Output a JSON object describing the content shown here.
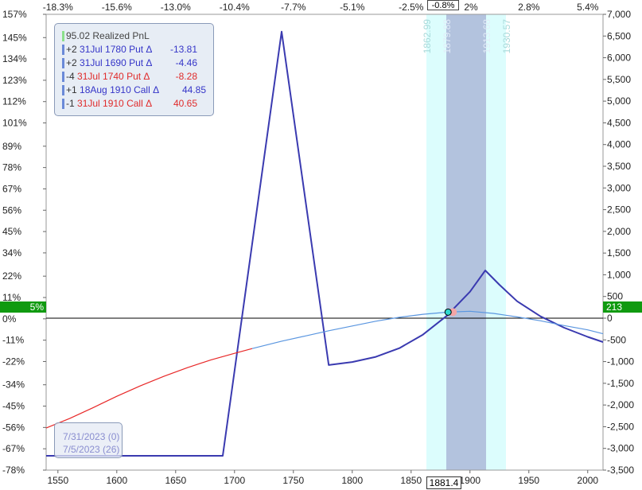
{
  "chart_data": {
    "type": "line",
    "x_axis": {
      "range": [
        1540,
        2013
      ],
      "ticks": [
        1550,
        1600,
        1650,
        1700,
        1750,
        1800,
        1850,
        1900,
        1950,
        2000
      ],
      "tick_labels": [
        "1550",
        "1600",
        "1650",
        "1700",
        "1750",
        "1800",
        "1850",
        "1900",
        "1950",
        "2000"
      ]
    },
    "top_axis": {
      "ticks": [
        1550,
        1600,
        1650,
        1700,
        1750,
        1800,
        1850,
        1900,
        1950,
        2000
      ],
      "tick_labels": [
        "-18.3%",
        "-15.6%",
        "-13.0%",
        "-10.4%",
        "-7.7%",
        "-5.1%",
        "-2.5%",
        "",
        "2.8%",
        "5.4%"
      ],
      "partial_label": "2%"
    },
    "y_left": {
      "range": [
        -78,
        157
      ],
      "ticks": [
        157,
        145,
        134,
        123,
        112,
        101,
        89,
        78,
        67,
        56,
        45,
        34,
        22,
        11,
        0,
        -11,
        -22,
        -34,
        -45,
        -56,
        -67,
        -78
      ],
      "tick_labels": [
        "157%",
        "145%",
        "134%",
        "123%",
        "112%",
        "101%",
        "89%",
        "78%",
        "67%",
        "56%",
        "45%",
        "34%",
        "22%",
        "11%",
        "0%",
        "-11%",
        "-22%",
        "-34%",
        "-45%",
        "-56%",
        "-67%",
        "-78%"
      ]
    },
    "y_right": {
      "range": [
        -3500,
        7000
      ],
      "ticks": [
        7000,
        6500,
        6000,
        5500,
        5000,
        4500,
        4000,
        3500,
        3000,
        2500,
        2000,
        1500,
        1000,
        500,
        0,
        -500,
        -1000,
        -1500,
        -2000,
        -2500,
        -3000,
        -3500
      ],
      "tick_labels": [
        "7,000",
        "6,500",
        "6,000",
        "5,500",
        "5,000",
        "4,500",
        "4,000",
        "3,500",
        "3,000",
        "2,500",
        "2,000",
        "1,500",
        "1,000",
        "500",
        "0",
        "-500",
        "-1,000",
        "-1,500",
        "-2,000",
        "-2,500",
        "-3,000",
        "-3,500"
      ]
    },
    "series": [
      {
        "color": "#3a3ab0",
        "points": [
          [
            1540,
            -3170
          ],
          [
            1690,
            -3170
          ],
          [
            1740,
            6600
          ],
          [
            1780,
            -1080
          ],
          [
            1800,
            -1010
          ],
          [
            1820,
            -890
          ],
          [
            1840,
            -690
          ],
          [
            1860,
            -380
          ],
          [
            1880,
            50
          ],
          [
            1900,
            610
          ],
          [
            1913,
            1100
          ],
          [
            1925,
            770
          ],
          [
            1940,
            390
          ],
          [
            1960,
            40
          ],
          [
            1980,
            -220
          ],
          [
            2000,
            -430
          ],
          [
            2013,
            -550
          ]
        ]
      },
      {
        "color": "#e82828",
        "points": [
          [
            1540,
            -2530
          ],
          [
            1560,
            -2310
          ],
          [
            1580,
            -2060
          ],
          [
            1600,
            -1800
          ],
          [
            1620,
            -1560
          ],
          [
            1640,
            -1340
          ],
          [
            1660,
            -1140
          ],
          [
            1680,
            -960
          ],
          [
            1700,
            -810
          ],
          [
            1715,
            -700
          ]
        ]
      },
      {
        "color": "#5a96e0",
        "points": [
          [
            1715,
            -700
          ],
          [
            1740,
            -530
          ],
          [
            1760,
            -410
          ],
          [
            1780,
            -290
          ],
          [
            1800,
            -180
          ],
          [
            1820,
            -70
          ],
          [
            1840,
            20
          ],
          [
            1860,
            90
          ],
          [
            1881,
            140
          ],
          [
            1900,
            160
          ],
          [
            1920,
            110
          ],
          [
            1940,
            30
          ],
          [
            1960,
            -60
          ],
          [
            1980,
            -170
          ],
          [
            2000,
            -270
          ],
          [
            2013,
            -360
          ]
        ]
      }
    ],
    "current_point": [
      1881.4,
      140
    ],
    "bands": [
      {
        "from": 1862.99,
        "to": 1930.57,
        "color": "#dcfdfd"
      },
      {
        "from": 1879.88,
        "to": 1913.68,
        "color": "#b3c3de"
      }
    ],
    "band_labels": [
      {
        "text": "1862.99",
        "x": 1862.99,
        "color": "#a8dada"
      },
      {
        "text": "1879.88",
        "x": 1879.88,
        "color": "#e2ecf8"
      },
      {
        "text": "1913.68",
        "x": 1913.68,
        "color": "#e2ecf8"
      },
      {
        "text": "1930.57",
        "x": 1930.57,
        "color": "#a8dada"
      }
    ],
    "grid": false,
    "legend_placement": "top-left"
  },
  "legend": {
    "items": [
      {
        "prefix": "",
        "label": "95.02 Realized PnL",
        "label_color": "#444444",
        "value": "",
        "value_color": "#444444",
        "marker_color": "#8be08b"
      },
      {
        "prefix": "+2",
        "label": "31Jul 1780 Put Δ",
        "label_color": "#3535c8",
        "value": "-13.81",
        "value_color": "#3535c8",
        "marker_color": "#6a8ad8"
      },
      {
        "prefix": "+2",
        "label": "31Jul 1690 Put Δ",
        "label_color": "#3535c8",
        "value": "-4.46",
        "value_color": "#3535c8",
        "marker_color": "#6a8ad8"
      },
      {
        "prefix": "-4",
        "label": "31Jul 1740 Put Δ",
        "label_color": "#e02b2b",
        "value": "-8.28",
        "value_color": "#e02b2b",
        "marker_color": "#6a8ad8"
      },
      {
        "prefix": "+1",
        "label": "18Aug 1910 Call Δ",
        "label_color": "#3535c8",
        "value": "44.85",
        "value_color": "#3535c8",
        "marker_color": "#6a8ad8"
      },
      {
        "prefix": "-1",
        "label": "31Jul 1910 Call Δ",
        "label_color": "#e02b2b",
        "value": "40.65",
        "value_color": "#e02b2b",
        "marker_color": "#6a8ad8"
      }
    ]
  },
  "dates": {
    "line1": "7/31/2023 (0)",
    "line2": "7/5/2023 (26)",
    "color": "#8a8ed0"
  },
  "markers": {
    "left_value": "5%",
    "right_value": "213",
    "top_value": "-0.8%",
    "bottom_value": "1881.4",
    "marker_color": "#109a10"
  }
}
